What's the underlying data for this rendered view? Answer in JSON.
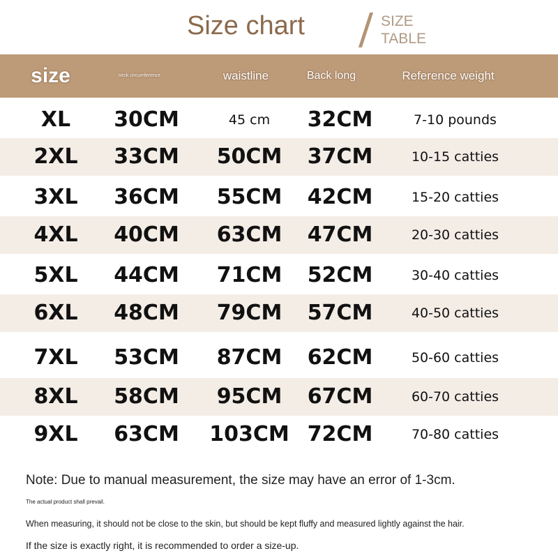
{
  "title": "Size chart",
  "subtitle_line1": "SIZE",
  "subtitle_line2": "TABLE",
  "colors": {
    "header": "#bd9a78",
    "stripe": "#f4ede6",
    "title": "#8b6a4c"
  },
  "columns": [
    "size",
    "neck circumference",
    "waistline",
    "Back long",
    "Reference weight"
  ],
  "rows": [
    [
      "XL",
      "30CM",
      "45 cm",
      "32CM",
      "7-10 pounds"
    ],
    [
      "2XL",
      "33CM",
      "50CM",
      "37CM",
      "10-15 catties"
    ],
    [
      "3XL",
      "36CM",
      "55CM",
      "42CM",
      "15-20 catties"
    ],
    [
      "4XL",
      "40CM",
      "63CM",
      "47CM",
      "20-30 catties"
    ],
    [
      "5XL",
      "44CM",
      "71CM",
      "52CM",
      "30-40 catties"
    ],
    [
      "6XL",
      "48CM",
      "79CM",
      "57CM",
      "40-50 catties"
    ],
    [
      "7XL",
      "53CM",
      "87CM",
      "62CM",
      "50-60 catties"
    ],
    [
      "8XL",
      "58CM",
      "95CM",
      "67CM",
      "60-70 catties"
    ],
    [
      "9XL",
      "63CM",
      "103CM",
      "72CM",
      "70-80 catties"
    ]
  ],
  "notes": [
    "Note: Due to manual measurement, the size may have an error of 1-3cm.",
    "The actual product shall prevail.",
    "When measuring, it should not be close to the skin, but should be kept fluffy and measured lightly against the hair.",
    "If the size is exactly right, it is recommended to order a size-up."
  ]
}
